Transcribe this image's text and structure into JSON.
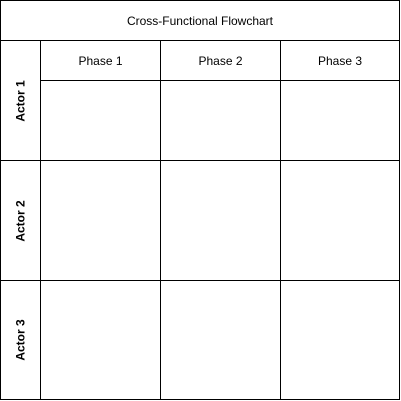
{
  "diagram": {
    "title": "Cross-Functional Flowchart",
    "phases": [
      {
        "label": "Phase 1"
      },
      {
        "label": "Phase 2"
      },
      {
        "label": "Phase 3"
      }
    ],
    "actors": [
      {
        "label": "Actor 1"
      },
      {
        "label": "Actor 2"
      },
      {
        "label": "Actor 3"
      }
    ]
  }
}
